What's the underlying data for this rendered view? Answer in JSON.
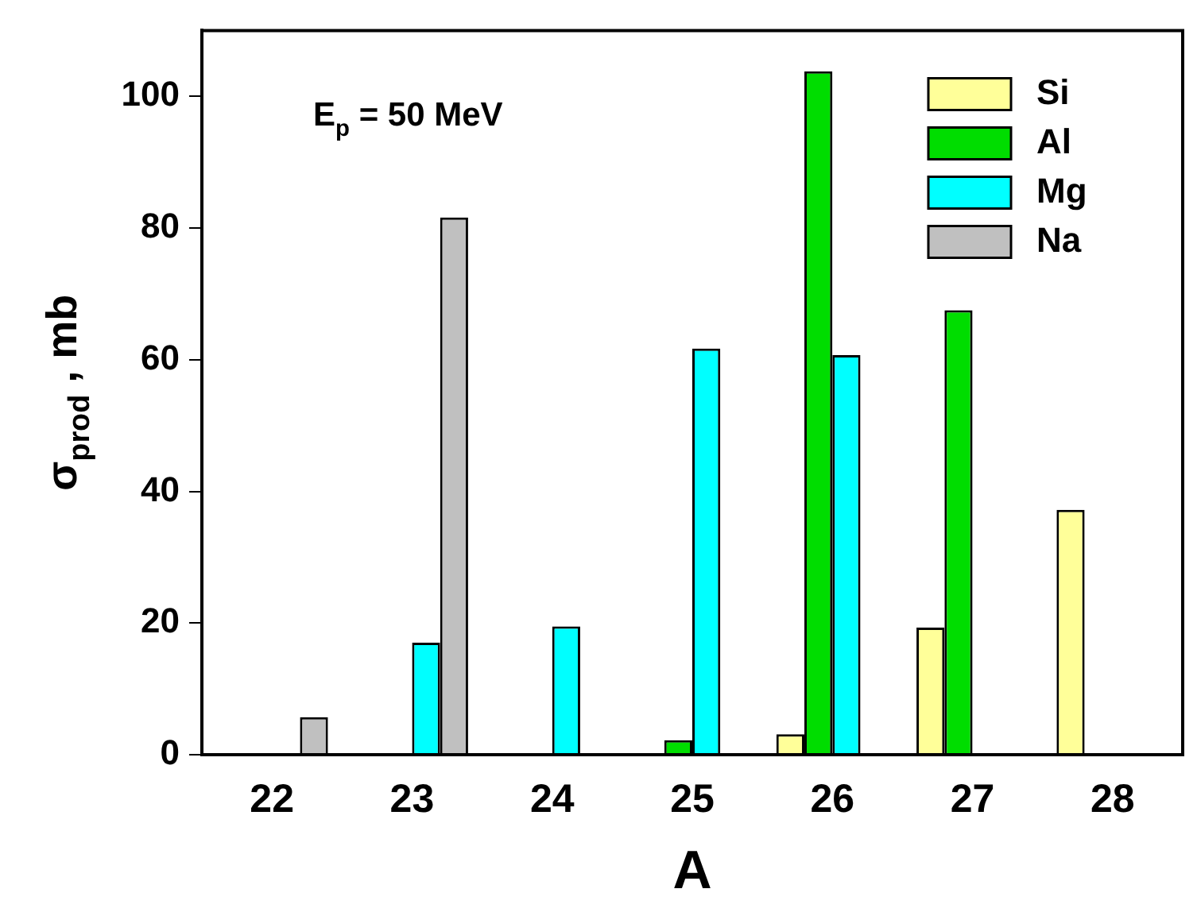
{
  "chart_data": {
    "type": "bar",
    "xlabel": "A",
    "ylabel": "σ$_{prod}$ , mb",
    "annotations": [
      "E$_{p}$ = 50 MeV"
    ],
    "categories": [
      "22",
      "23",
      "24",
      "25",
      "26",
      "27",
      "28"
    ],
    "series": [
      {
        "name": "Si",
        "color": "#ffff99",
        "values": [
          null,
          null,
          null,
          null,
          3.1,
          19.3,
          37.2
        ]
      },
      {
        "name": "Al",
        "color": "#00dd00",
        "values": [
          null,
          null,
          null,
          2.2,
          103.8,
          67.5,
          null
        ]
      },
      {
        "name": "Mg",
        "color": "#00ffff",
        "values": [
          null,
          17.0,
          19.5,
          61.7,
          60.7,
          null,
          null
        ]
      },
      {
        "name": "Na",
        "color": "#c0c0c0",
        "values": [
          5.7,
          81.6,
          null,
          null,
          null,
          null,
          null
        ]
      }
    ],
    "ylim": [
      0,
      110
    ],
    "yticks": [
      0,
      20,
      40,
      60,
      80,
      100
    ],
    "grid": false,
    "legend": "top right"
  }
}
